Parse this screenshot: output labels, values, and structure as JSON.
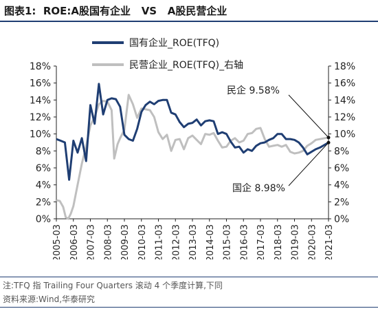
{
  "title": "图表1:  ROE:A股国有企业   VS   A股民营企业",
  "note": "注:TFQ 指 Trailing Four Quarters 滚动 4 个季度计算,下同",
  "source": "资料来源:Wind,华泰研究",
  "colors": {
    "soe": "#1f3e73",
    "private": "#bfbfbf",
    "title_rule": "#1f3e73"
  },
  "chart_data": {
    "type": "line",
    "title": "",
    "ylim": [
      0,
      18
    ],
    "y_ticks": [
      "0%",
      "2%",
      "4%",
      "6%",
      "8%",
      "10%",
      "12%",
      "14%",
      "16%",
      "18%"
    ],
    "y2_ticks": [
      "0%",
      "2%",
      "4%",
      "6%",
      "8%",
      "10%",
      "12%",
      "14%",
      "16%",
      "18%"
    ],
    "x_ticks": [
      "2005-03",
      "2006-03",
      "2007-03",
      "2008-03",
      "2009-03",
      "2010-03",
      "2011-03",
      "2012-03",
      "2013-03",
      "2014-03",
      "2015-03",
      "2016-03",
      "2017-03",
      "2018-03",
      "2019-03",
      "2020-03",
      "2021-03"
    ],
    "x_range": [
      2005.0,
      2021.0
    ],
    "grid": false,
    "legend_position": "top",
    "series": [
      {
        "name": "国有企业_ROE(TFQ)",
        "axis": "left",
        "points": [
          [
            2005.0,
            9.4
          ],
          [
            2005.25,
            9.2
          ],
          [
            2005.5,
            9.0
          ],
          [
            2005.75,
            4.6
          ],
          [
            2006.0,
            9.2
          ],
          [
            2006.25,
            7.8
          ],
          [
            2006.5,
            9.5
          ],
          [
            2006.75,
            6.8
          ],
          [
            2007.0,
            13.4
          ],
          [
            2007.25,
            11.2
          ],
          [
            2007.5,
            15.9
          ],
          [
            2007.75,
            12.3
          ],
          [
            2008.0,
            14.0
          ],
          [
            2008.25,
            14.2
          ],
          [
            2008.5,
            14.1
          ],
          [
            2008.75,
            13.2
          ],
          [
            2009.0,
            9.9
          ],
          [
            2009.25,
            9.4
          ],
          [
            2009.5,
            9.2
          ],
          [
            2009.75,
            10.6
          ],
          [
            2010.0,
            12.6
          ],
          [
            2010.25,
            13.4
          ],
          [
            2010.5,
            13.8
          ],
          [
            2010.75,
            13.5
          ],
          [
            2011.0,
            13.9
          ],
          [
            2011.25,
            14.0
          ],
          [
            2011.5,
            14.0
          ],
          [
            2011.75,
            12.5
          ],
          [
            2012.0,
            12.3
          ],
          [
            2012.25,
            11.4
          ],
          [
            2012.5,
            10.8
          ],
          [
            2012.75,
            11.2
          ],
          [
            2013.0,
            11.3
          ],
          [
            2013.25,
            11.7
          ],
          [
            2013.5,
            11.0
          ],
          [
            2013.75,
            11.5
          ],
          [
            2014.0,
            11.6
          ],
          [
            2014.25,
            11.5
          ],
          [
            2014.5,
            10.0
          ],
          [
            2014.75,
            10.2
          ],
          [
            2015.0,
            10.0
          ],
          [
            2015.25,
            9.1
          ],
          [
            2015.5,
            8.4
          ],
          [
            2015.75,
            8.5
          ],
          [
            2016.0,
            7.8
          ],
          [
            2016.25,
            8.2
          ],
          [
            2016.5,
            8.0
          ],
          [
            2016.75,
            8.6
          ],
          [
            2017.0,
            8.9
          ],
          [
            2017.25,
            9.0
          ],
          [
            2017.5,
            9.3
          ],
          [
            2017.75,
            9.5
          ],
          [
            2018.0,
            10.0
          ],
          [
            2018.25,
            10.0
          ],
          [
            2018.5,
            9.4
          ],
          [
            2018.75,
            9.4
          ],
          [
            2019.0,
            9.3
          ],
          [
            2019.25,
            9.0
          ],
          [
            2019.5,
            8.4
          ],
          [
            2019.75,
            7.6
          ],
          [
            2020.0,
            7.9
          ],
          [
            2020.25,
            8.2
          ],
          [
            2020.5,
            8.4
          ],
          [
            2021.0,
            8.98
          ]
        ]
      },
      {
        "name": "民营企业_ROE(TFQ)_右轴",
        "axis": "right",
        "points": [
          [
            2005.0,
            2.2
          ],
          [
            2005.2,
            2.1
          ],
          [
            2005.4,
            1.4
          ],
          [
            2005.55,
            0.2
          ],
          [
            2005.7,
            0.0
          ],
          [
            2005.85,
            0.6
          ],
          [
            2006.0,
            1.5
          ],
          [
            2006.25,
            4.0
          ],
          [
            2006.5,
            6.5
          ],
          [
            2006.75,
            8.5
          ],
          [
            2007.0,
            11.0
          ],
          [
            2007.25,
            12.0
          ],
          [
            2007.5,
            13.5
          ],
          [
            2007.75,
            13.9
          ],
          [
            2008.0,
            13.8
          ],
          [
            2008.25,
            12.8
          ],
          [
            2008.4,
            7.1
          ],
          [
            2008.6,
            8.8
          ],
          [
            2008.75,
            9.5
          ],
          [
            2009.0,
            10.5
          ],
          [
            2009.25,
            14.6
          ],
          [
            2009.5,
            13.5
          ],
          [
            2009.75,
            11.9
          ],
          [
            2010.0,
            13.0
          ],
          [
            2010.25,
            12.9
          ],
          [
            2010.5,
            12.8
          ],
          [
            2010.75,
            12.0
          ],
          [
            2011.0,
            10.2
          ],
          [
            2011.25,
            9.4
          ],
          [
            2011.5,
            9.9
          ],
          [
            2011.75,
            8.0
          ],
          [
            2012.0,
            9.3
          ],
          [
            2012.25,
            9.4
          ],
          [
            2012.5,
            8.2
          ],
          [
            2012.75,
            9.5
          ],
          [
            2013.0,
            9.8
          ],
          [
            2013.25,
            9.3
          ],
          [
            2013.5,
            8.8
          ],
          [
            2013.75,
            10.0
          ],
          [
            2014.0,
            9.9
          ],
          [
            2014.25,
            10.1
          ],
          [
            2014.5,
            9.2
          ],
          [
            2014.75,
            8.4
          ],
          [
            2015.0,
            8.5
          ],
          [
            2015.25,
            9.2
          ],
          [
            2015.5,
            9.5
          ],
          [
            2015.75,
            9.0
          ],
          [
            2016.0,
            9.2
          ],
          [
            2016.25,
            10.0
          ],
          [
            2016.5,
            10.1
          ],
          [
            2016.75,
            10.6
          ],
          [
            2017.0,
            10.7
          ],
          [
            2017.25,
            9.4
          ],
          [
            2017.5,
            8.5
          ],
          [
            2017.75,
            8.6
          ],
          [
            2018.0,
            8.7
          ],
          [
            2018.25,
            8.5
          ],
          [
            2018.5,
            8.7
          ],
          [
            2018.75,
            7.9
          ],
          [
            2019.0,
            7.7
          ],
          [
            2019.25,
            7.8
          ],
          [
            2019.5,
            8.0
          ],
          [
            2019.75,
            8.6
          ],
          [
            2020.0,
            8.9
          ],
          [
            2020.25,
            9.3
          ],
          [
            2021.0,
            9.58
          ]
        ]
      }
    ],
    "annotations": [
      {
        "label": "民企  9.58%",
        "series": 1
      },
      {
        "label": "国企  8.98%",
        "series": 0
      }
    ]
  }
}
